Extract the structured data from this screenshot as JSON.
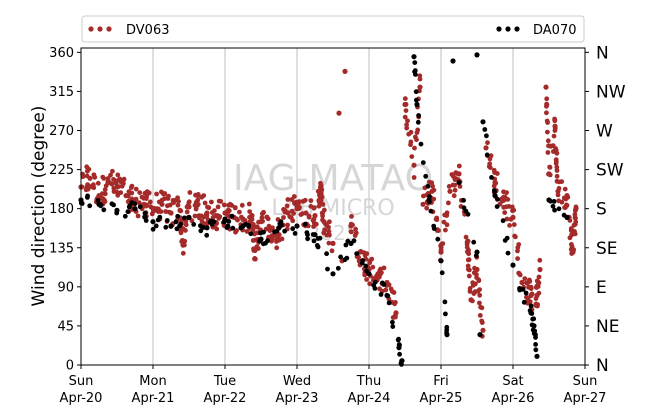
{
  "chart_data": {
    "type": "scatter",
    "ylabel": "Wind direction (degree)",
    "xlabel": "",
    "title": "",
    "xlim": [
      "2025-04-20 00:00",
      "2025-04-27 00:00"
    ],
    "ylim": [
      0,
      365
    ],
    "y_ticks": [
      0,
      45,
      90,
      135,
      180,
      225,
      270,
      315,
      360
    ],
    "x_ticks": [
      {
        "at": "2025-04-20",
        "day": "Sun",
        "date": "Apr-20"
      },
      {
        "at": "2025-04-21",
        "day": "Mon",
        "date": "Apr-21"
      },
      {
        "at": "2025-04-22",
        "day": "Tue",
        "date": "Apr-22"
      },
      {
        "at": "2025-04-23",
        "day": "Wed",
        "date": "Apr-23"
      },
      {
        "at": "2025-04-24",
        "day": "Thu",
        "date": "Apr-24"
      },
      {
        "at": "2025-04-25",
        "day": "Fri",
        "date": "Apr-25"
      },
      {
        "at": "2025-04-26",
        "day": "Sat",
        "date": "Apr-26"
      },
      {
        "at": "2025-04-27",
        "day": "Sun",
        "date": "Apr-27"
      }
    ],
    "secondary_y_labels": [
      {
        "value": 0,
        "label": "N"
      },
      {
        "value": 45,
        "label": "NE"
      },
      {
        "value": 90,
        "label": "E"
      },
      {
        "value": 135,
        "label": "SE"
      },
      {
        "value": 180,
        "label": "S"
      },
      {
        "value": 225,
        "label": "SW"
      },
      {
        "value": 270,
        "label": "W"
      },
      {
        "value": 315,
        "label": "NW"
      },
      {
        "value": 360,
        "label": "N"
      }
    ],
    "grid": "vertical lines at each day",
    "legend_position": "top, outside plot",
    "watermark": [
      "IAG-MATAO",
      "LAB MICRO",
      "2025"
    ],
    "series": [
      {
        "name": "DV063",
        "color": "#a52a2a",
        "points": [
          [
            "2025-04-20 00:00",
            205
          ],
          [
            "2025-04-20 03:00",
            215
          ],
          [
            "2025-04-20 06:00",
            195
          ],
          [
            "2025-04-20 09:00",
            210
          ],
          [
            "2025-04-20 12:00",
            205
          ],
          [
            "2025-04-20 15:00",
            195
          ],
          [
            "2025-04-20 18:00",
            190
          ],
          [
            "2025-04-20 21:00",
            185
          ],
          [
            "2025-04-21 00:00",
            180
          ],
          [
            "2025-04-21 03:00",
            185
          ],
          [
            "2025-04-21 06:00",
            175
          ],
          [
            "2025-04-21 09:00",
            178
          ],
          [
            "2025-04-21 12:00",
            182
          ],
          [
            "2025-04-21 15:00",
            185
          ],
          [
            "2025-04-21 18:00",
            175
          ],
          [
            "2025-04-21 21:00",
            172
          ],
          [
            "2025-04-22 00:00",
            175
          ],
          [
            "2025-04-22 03:00",
            170
          ],
          [
            "2025-04-22 06:00",
            168
          ],
          [
            "2025-04-22 09:00",
            172
          ],
          [
            "2025-04-22 12:00",
            165
          ],
          [
            "2025-04-22 15:00",
            155
          ],
          [
            "2025-04-22 18:00",
            150
          ],
          [
            "2025-04-22 21:00",
            175
          ],
          [
            "2025-04-23 00:00",
            180
          ],
          [
            "2025-04-23 03:00",
            175
          ],
          [
            "2025-04-23 06:00",
            172
          ],
          [
            "2025-04-23 09:00",
            165
          ],
          [
            "2025-04-23 12:00",
            140
          ],
          [
            "2025-04-23 15:00",
            120
          ],
          [
            "2025-04-23 18:00",
            160
          ],
          [
            "2025-04-23 21:00",
            130
          ],
          [
            "2025-04-24 00:00",
            110
          ],
          [
            "2025-04-24 03:00",
            105
          ],
          [
            "2025-04-24 06:00",
            95
          ],
          [
            "2025-04-24 09:00",
            60
          ],
          [
            "2025-04-24 12:00",
            300
          ],
          [
            "2025-04-24 15:00",
            230
          ],
          [
            "2025-04-24 18:00",
            185
          ],
          [
            "2025-04-24 21:00",
            200
          ],
          [
            "2025-04-25 00:00",
            130
          ],
          [
            "2025-04-25 03:00",
            200
          ],
          [
            "2025-04-25 06:00",
            220
          ],
          [
            "2025-04-25 09:00",
            130
          ],
          [
            "2025-04-25 12:00",
            110
          ],
          [
            "2025-04-25 15:00",
            250
          ],
          [
            "2025-04-25 18:00",
            210
          ],
          [
            "2025-04-25 21:00",
            190
          ],
          [
            "2025-04-26 00:00",
            170
          ],
          [
            "2025-04-26 03:00",
            95
          ],
          [
            "2025-04-26 06:00",
            80
          ],
          [
            "2025-04-26 09:00",
            110
          ],
          [
            "2025-04-26 12:00",
            220
          ],
          [
            "2025-04-26 15:00",
            200
          ],
          [
            "2025-04-26 18:00",
            195
          ],
          [
            "2025-04-26 21:00",
            180
          ],
          [
            "2025-04-21 10:00",
            138
          ],
          [
            "2025-04-22 10:00",
            132
          ],
          [
            "2025-04-23 08:00",
            200
          ],
          [
            "2025-04-23 14:00",
            290
          ],
          [
            "2025-04-23 16:00",
            338
          ],
          [
            "2025-04-24 17:00",
            320
          ],
          [
            "2025-04-25 10:00",
            75
          ],
          [
            "2025-04-25 14:00",
            40
          ],
          [
            "2025-04-26 11:00",
            320
          ],
          [
            "2025-04-26 14:00",
            275
          ],
          [
            "2025-04-26 08:00",
            80
          ],
          [
            "2025-04-26 20:00",
            130
          ]
        ]
      },
      {
        "name": "DA070",
        "color": "#000000",
        "points": [
          [
            "2025-04-20 00:00",
            190
          ],
          [
            "2025-04-20 06:00",
            185
          ],
          [
            "2025-04-20 12:00",
            178
          ],
          [
            "2025-04-20 18:00",
            180
          ],
          [
            "2025-04-21 00:00",
            165
          ],
          [
            "2025-04-21 06:00",
            160
          ],
          [
            "2025-04-21 12:00",
            170
          ],
          [
            "2025-04-21 18:00",
            158
          ],
          [
            "2025-04-22 00:00",
            168
          ],
          [
            "2025-04-22 06:00",
            160
          ],
          [
            "2025-04-22 12:00",
            145
          ],
          [
            "2025-04-22 18:00",
            158
          ],
          [
            "2025-04-23 00:00",
            160
          ],
          [
            "2025-04-23 06:00",
            150
          ],
          [
            "2025-04-23 12:00",
            105
          ],
          [
            "2025-04-23 18:00",
            140
          ],
          [
            "2025-04-24 00:00",
            105
          ],
          [
            "2025-04-24 06:00",
            80
          ],
          [
            "2025-04-24 10:00",
            20
          ],
          [
            "2025-04-24 16:00",
            300
          ],
          [
            "2025-04-24 20:00",
            190
          ],
          [
            "2025-04-25 00:00",
            120
          ],
          [
            "2025-04-25 06:00",
            210
          ],
          [
            "2025-04-25 12:00",
            130
          ],
          [
            "2025-04-25 18:00",
            195
          ],
          [
            "2025-04-26 00:00",
            115
          ],
          [
            "2025-04-26 06:00",
            60
          ],
          [
            "2025-04-26 12:00",
            190
          ],
          [
            "2025-04-26 18:00",
            170
          ],
          [
            "2025-04-24 15:00",
            355
          ],
          [
            "2025-04-24 11:00",
            5
          ],
          [
            "2025-04-25 04:00",
            350
          ],
          [
            "2025-04-25 12:00",
            357
          ],
          [
            "2025-04-25 02:00",
            35
          ],
          [
            "2025-04-25 13:00",
            35
          ],
          [
            "2025-04-26 08:00",
            10
          ],
          [
            "2025-04-26 07:00",
            45
          ],
          [
            "2025-04-25 14:00",
            280
          ]
        ]
      }
    ]
  }
}
